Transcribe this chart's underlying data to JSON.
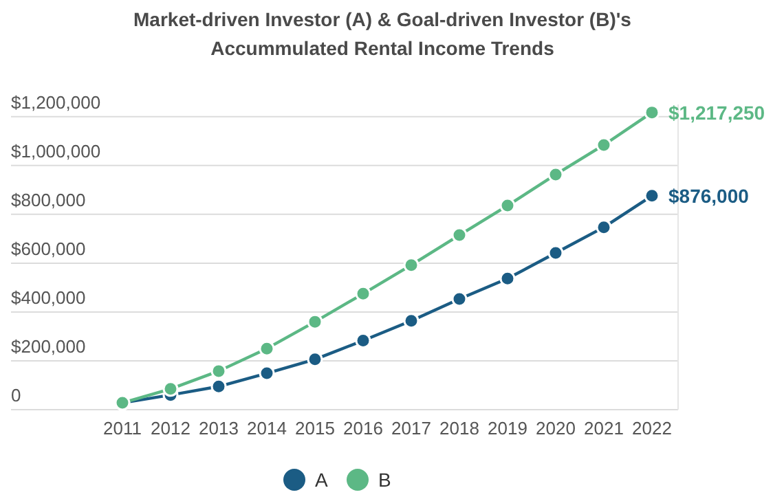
{
  "chart_data": {
    "type": "line",
    "title": "Market-driven Investor (A) & Goal-driven Investor (B)'s Accummulated Rental Income Trends",
    "categories": [
      "2011",
      "2012",
      "2013",
      "2014",
      "2015",
      "2016",
      "2017",
      "2018",
      "2019",
      "2020",
      "2021",
      "2022"
    ],
    "series": [
      {
        "name": "A",
        "color": "#1b5c84",
        "values": [
          28000,
          60000,
          95000,
          149000,
          206000,
          283000,
          364000,
          453000,
          537000,
          642000,
          747000,
          876000
        ],
        "value_labels": [
          null,
          null,
          null,
          null,
          null,
          null,
          null,
          null,
          null,
          null,
          null,
          "$876,000"
        ]
      },
      {
        "name": "B",
        "color": "#5cb885",
        "values": [
          28000,
          85000,
          158000,
          250000,
          360000,
          475000,
          592000,
          715000,
          836000,
          963000,
          1084000,
          1217250
        ],
        "value_labels": [
          null,
          null,
          null,
          null,
          null,
          null,
          null,
          null,
          null,
          null,
          null,
          "$1,217,250"
        ]
      }
    ],
    "ylim": [
      0,
      1250000
    ],
    "yticks": [
      {
        "value": 0,
        "label": "0"
      },
      {
        "value": 200000,
        "label": "$200,000"
      },
      {
        "value": 400000,
        "label": "$400,000"
      },
      {
        "value": 600000,
        "label": "$600,000"
      },
      {
        "value": 800000,
        "label": "$800,000"
      },
      {
        "value": 1000000,
        "label": "$1,000,000"
      },
      {
        "value": 1200000,
        "label": "$1,200,000"
      }
    ],
    "grid": "y",
    "legend": "bottom",
    "marker": "circle",
    "line_style": "solid"
  }
}
